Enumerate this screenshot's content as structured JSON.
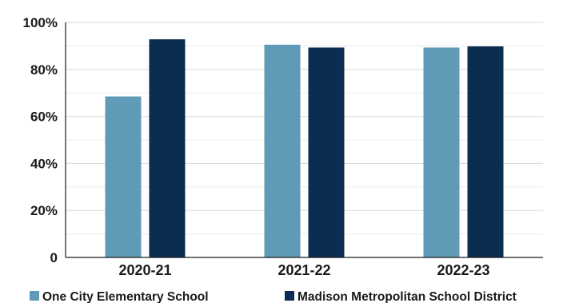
{
  "chart_data": {
    "type": "bar",
    "title": "",
    "xlabel": "",
    "ylabel": "",
    "categories": [
      "2020-21",
      "2021-22",
      "2022-23"
    ],
    "series": [
      {
        "name": "One City Elementary School",
        "values": [
          68.5,
          90.5,
          89.3
        ],
        "color": "#5f9bb6"
      },
      {
        "name": "Madison Metropolitan School District",
        "values": [
          92.8,
          89.3,
          89.8
        ],
        "color": "#0b2d4f"
      }
    ],
    "ylim": [
      0,
      100
    ],
    "yticks": [
      0,
      20,
      40,
      60,
      80,
      100
    ],
    "ytick_labels": [
      "0",
      "20%",
      "40%",
      "60%",
      "80%",
      "100%"
    ],
    "grid": true,
    "legend_position": "bottom"
  }
}
